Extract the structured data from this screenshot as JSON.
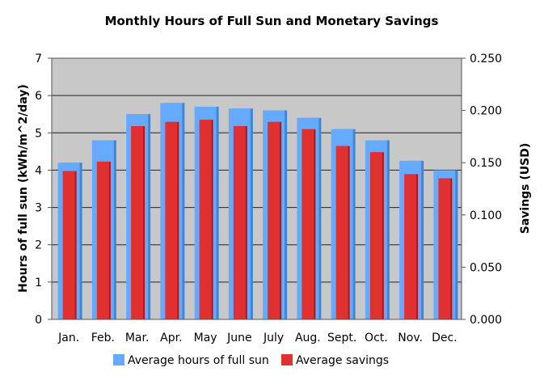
{
  "chart_data": {
    "type": "bar",
    "title": "Monthly Hours of Full Sun and Monetary Savings",
    "ylabel": "Hours of full sun (kWh/m^2/day)",
    "y2label": "Savings (USD)",
    "categories": [
      "Jan.",
      "Feb.",
      "Mar.",
      "Apr.",
      "May",
      "June",
      "July",
      "Aug.",
      "Sept.",
      "Oct.",
      "Nov.",
      "Dec."
    ],
    "ylim": [
      0,
      7
    ],
    "y2lim": [
      0,
      0.25
    ],
    "yticks": [
      "0",
      "1",
      "2",
      "3",
      "4",
      "5",
      "6",
      "7"
    ],
    "y2ticks": [
      "0.000",
      "0.050",
      "0.100",
      "0.150",
      "0.200",
      "0.250"
    ],
    "grid": true,
    "legend_position": "bottom",
    "plot_background": "#c8c8c8",
    "series": [
      {
        "name": "Average hours of full sun",
        "axis": "left",
        "color": "#66aaff",
        "values": [
          4.2,
          4.8,
          5.5,
          5.8,
          5.7,
          5.65,
          5.6,
          5.4,
          5.1,
          4.8,
          4.25,
          4.0
        ]
      },
      {
        "name": "Average savings",
        "axis": "right",
        "color": "#e03030",
        "values": [
          0.142,
          0.151,
          0.185,
          0.189,
          0.191,
          0.185,
          0.189,
          0.182,
          0.166,
          0.16,
          0.139,
          0.135
        ]
      }
    ]
  }
}
